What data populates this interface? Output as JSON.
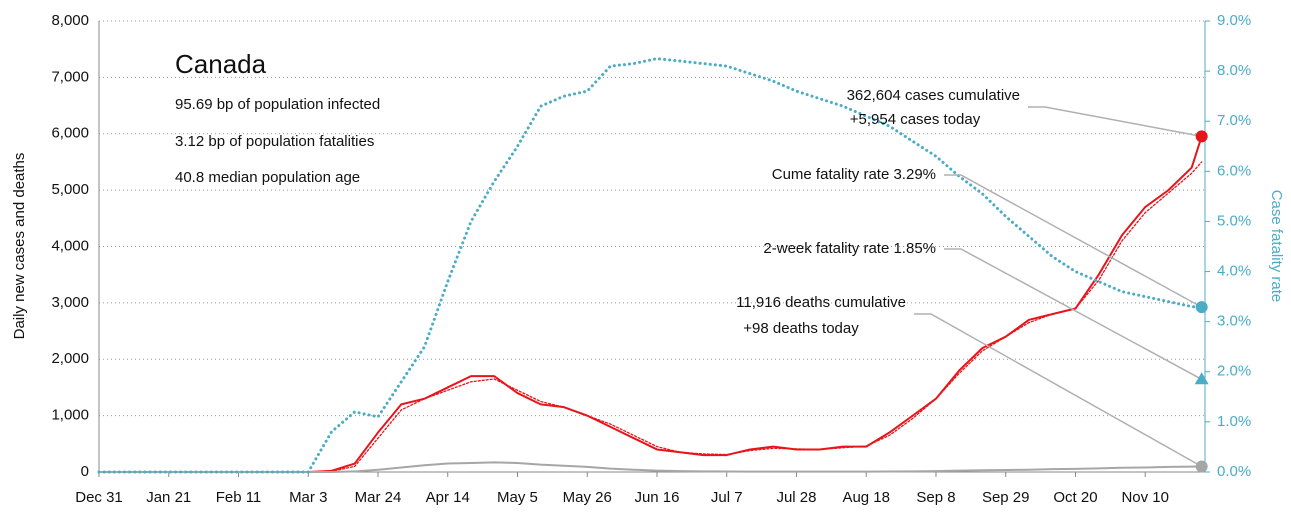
{
  "chart_data": {
    "type": "line",
    "ylabel": "Daily new cases and deaths",
    "y2label": "Case fatality rate",
    "info": {
      "title": "Canada",
      "lines": [
        "95.69 bp of population infected",
        "3.12 bp of population fatalities",
        "40.8 median population age"
      ]
    },
    "x": [
      0,
      7,
      14,
      21,
      28,
      35,
      42,
      49,
      56,
      63,
      70,
      77,
      84,
      91,
      98,
      105,
      112,
      119,
      126,
      133,
      140,
      147,
      154,
      161,
      168,
      175,
      182,
      189,
      196,
      203,
      210,
      217,
      224,
      231,
      238,
      245,
      252,
      259,
      266,
      273,
      280,
      287,
      294,
      301,
      308,
      315,
      322,
      329,
      332
    ],
    "xlim": [
      0,
      333
    ],
    "xticks": [
      {
        "value": 0,
        "label": "Dec 31"
      },
      {
        "value": 21,
        "label": "Jan 21"
      },
      {
        "value": 42,
        "label": "Feb 11"
      },
      {
        "value": 63,
        "label": "Mar 3"
      },
      {
        "value": 84,
        "label": "Mar 24"
      },
      {
        "value": 105,
        "label": "Apr 14"
      },
      {
        "value": 126,
        "label": "May 5"
      },
      {
        "value": 147,
        "label": "May 26"
      },
      {
        "value": 168,
        "label": "Jun 16"
      },
      {
        "value": 189,
        "label": "Jul 7"
      },
      {
        "value": 210,
        "label": "Jul 28"
      },
      {
        "value": 231,
        "label": "Aug 18"
      },
      {
        "value": 252,
        "label": "Sep 8"
      },
      {
        "value": 273,
        "label": "Sep 29"
      },
      {
        "value": 294,
        "label": "Oct 20"
      },
      {
        "value": 315,
        "label": "Nov 10"
      }
    ],
    "ylim": [
      0,
      8000
    ],
    "yticks": [
      0,
      {
        "value": 1000,
        "label": "1,000"
      },
      {
        "value": 2000,
        "label": "2,000"
      },
      {
        "value": 3000,
        "label": "3,000"
      },
      {
        "value": 4000,
        "label": "4,000"
      },
      {
        "value": 5000,
        "label": "5,000"
      },
      {
        "value": 6000,
        "label": "6,000"
      },
      {
        "value": 7000,
        "label": "7,000"
      },
      {
        "value": 8000,
        "label": "8,000"
      }
    ],
    "y2lim": [
      0,
      9
    ],
    "y2ticks": [
      {
        "value": 0,
        "label": "0.0%"
      },
      {
        "value": 1,
        "label": "1.0%"
      },
      {
        "value": 2,
        "label": "2.0%"
      },
      {
        "value": 3,
        "label": "3.0%"
      },
      {
        "value": 4,
        "label": "4.0%"
      },
      {
        "value": 5,
        "label": "5.0%"
      },
      {
        "value": 6,
        "label": "6.0%"
      },
      {
        "value": 7,
        "label": "7.0%"
      },
      {
        "value": 8,
        "label": "8.0%"
      },
      {
        "value": 9,
        "label": "9.0%"
      }
    ],
    "grid": true,
    "series": [
      {
        "color": "#e8141b",
        "dotted": false,
        "width": 2,
        "values": [
          0,
          0,
          0,
          0,
          0,
          0,
          0,
          0,
          0,
          0,
          20,
          150,
          700,
          1200,
          1300,
          1500,
          1700,
          1700,
          1400,
          1200,
          1150,
          1000,
          800,
          600,
          400,
          350,
          300,
          300,
          400,
          450,
          400,
          400,
          450,
          450,
          700,
          1000,
          1300,
          1800,
          2200,
          2400,
          2700,
          2800,
          2900,
          3500,
          4200,
          4700,
          5000,
          5400,
          5954
        ]
      },
      {
        "color": "#e8141b",
        "dotted": true,
        "width": 1.3,
        "values": [
          0,
          0,
          0,
          0,
          0,
          0,
          0,
          0,
          0,
          0,
          10,
          100,
          600,
          1100,
          1300,
          1450,
          1600,
          1650,
          1450,
          1250,
          1150,
          1000,
          850,
          650,
          450,
          350,
          320,
          310,
          380,
          420,
          410,
          400,
          430,
          460,
          650,
          950,
          1300,
          1750,
          2150,
          2400,
          2650,
          2800,
          2900,
          3400,
          4100,
          4600,
          4950,
          5300,
          5500
        ]
      },
      {
        "color": "#a6a6a6",
        "dotted": false,
        "width": 2,
        "values": [
          0,
          0,
          0,
          0,
          0,
          0,
          0,
          0,
          0,
          0,
          0,
          10,
          40,
          80,
          120,
          150,
          160,
          170,
          160,
          130,
          110,
          90,
          60,
          40,
          25,
          15,
          10,
          8,
          7,
          6,
          6,
          6,
          6,
          7,
          8,
          10,
          15,
          25,
          30,
          35,
          40,
          50,
          55,
          65,
          75,
          80,
          90,
          95,
          98
        ]
      },
      {
        "color": "#4bacc6",
        "dotted": true,
        "width": 3,
        "axis": "y2",
        "values": [
          0,
          0,
          0,
          0,
          0,
          0,
          0,
          0,
          0,
          0,
          0.8,
          1.2,
          1.1,
          1.8,
          2.5,
          3.8,
          5.0,
          5.8,
          6.5,
          7.3,
          7.5,
          7.6,
          8.1,
          8.15,
          8.25,
          8.2,
          8.15,
          8.1,
          7.95,
          7.8,
          7.6,
          7.45,
          7.3,
          7.1,
          6.9,
          6.6,
          6.3,
          5.9,
          5.55,
          5.1,
          4.7,
          4.3,
          4.0,
          3.8,
          3.6,
          3.5,
          3.4,
          3.3,
          3.29
        ]
      }
    ],
    "two_week_rate": 1.85,
    "annotations": [
      "362,604 cases cumulative",
      "+5,954 cases today",
      "Cume fatality rate 3.29%",
      "2-week fatality rate 1.85%",
      "11,916 deaths cumulative",
      "+98 deaths today"
    ]
  }
}
